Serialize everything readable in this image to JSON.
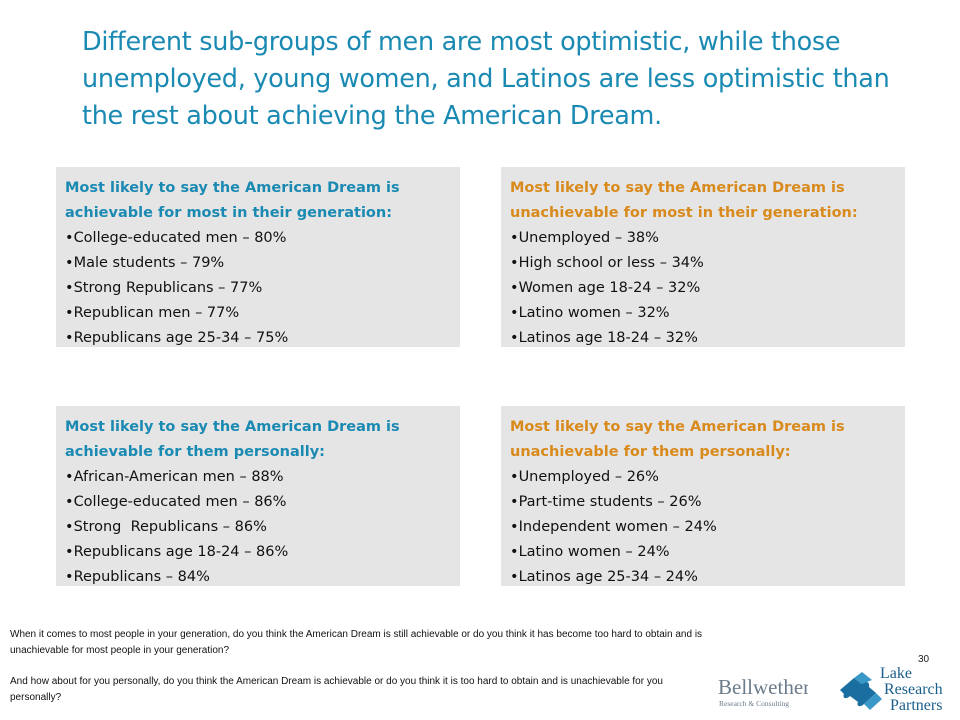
{
  "title": "Different sub-groups of men are most optimistic, while those unemployed, young women, and Latinos are less optimistic than the rest about achieving the American Dream.",
  "boxes": {
    "generation_achievable": {
      "heading": "Most likely to say the American Dream is achievable for most in their generation:",
      "items": [
        "College-educated men – 80%",
        "Male students – 79%",
        "Strong Republicans – 77%",
        "Republican men – 77%",
        "Republicans age 25-34 – 75%"
      ]
    },
    "generation_unachievable": {
      "heading": "Most likely to say the American Dream is unachievable for most in their generation:",
      "items": [
        "Unemployed – 38%",
        "High school or less – 34%",
        "Women age 18-24 – 32%",
        "Latino women – 32%",
        "Latinos age 18-24 – 32%"
      ]
    },
    "personal_achievable": {
      "heading": "Most likely to say the American Dream is achievable for them personally:",
      "items": [
        "African-American men – 88%",
        "College-educated men – 86%",
        "Strong  Republicans – 86%",
        "Republicans age 18-24 – 86%",
        "Republicans – 84%"
      ]
    },
    "personal_unachievable": {
      "heading": "Most likely to say the American Dream is unachievable for them personally:",
      "items": [
        "Unemployed – 26%",
        "Part-time students – 26%",
        "Independent women – 24%",
        "Latino women – 24%",
        "Latinos age 25-34 – 24%"
      ]
    }
  },
  "bullet": "•",
  "footnotes": [
    "When it comes to most people in your generation, do you think the American Dream is still achievable or do you think it has become too hard to obtain and is unachievable for most people in your generation?",
    "And how about for you personally, do you think the American Dream is achievable or do you think it is too hard to obtain and is unachievable for you personally?"
  ],
  "page_number": "30",
  "logos": {
    "bellwether": {
      "name": "Bellwether",
      "sub": "Research & Consulting"
    },
    "lake": {
      "line1": "Lake",
      "line2": "Research",
      "line3": "Partners"
    }
  },
  "colors": {
    "blue": "#1b8ab3",
    "orange": "#d98a1c",
    "box_bg": "#e5e5e5"
  }
}
